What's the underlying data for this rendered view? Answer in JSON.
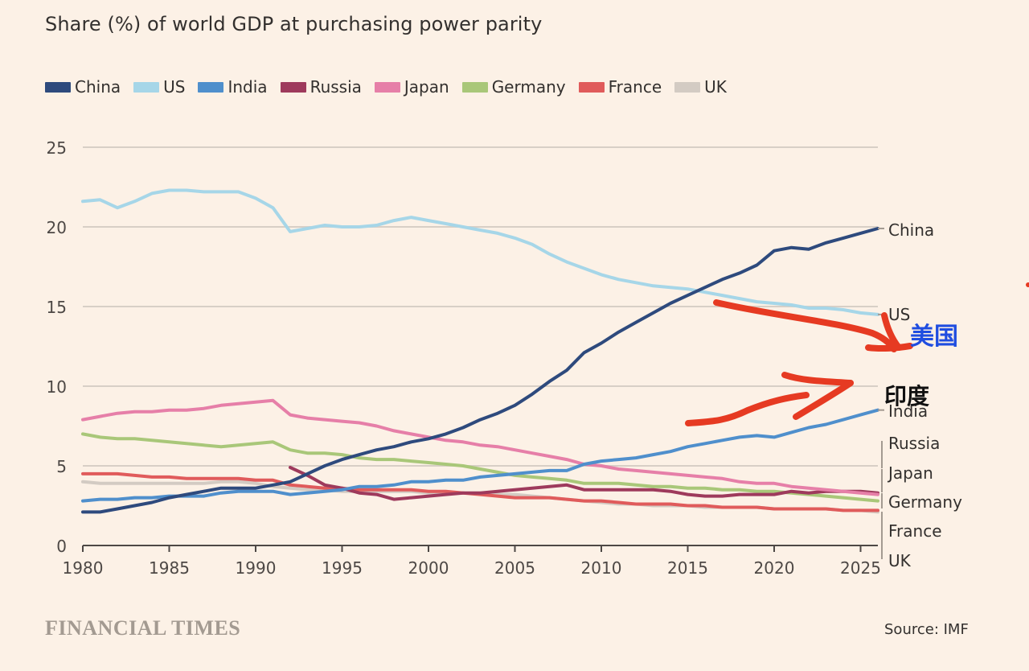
{
  "chart_data": {
    "type": "line",
    "title": "Share (%) of world GDP at purchasing power parity",
    "source": "Source: IMF",
    "brand": "FINANCIAL TIMES",
    "xlim": [
      1980,
      2026
    ],
    "ylim": [
      0,
      25
    ],
    "xticks": [
      "1980",
      "1985",
      "1990",
      "1995",
      "2000",
      "2005",
      "2010",
      "2015",
      "2020",
      "2025"
    ],
    "yticks": [
      "0",
      "5",
      "10",
      "15",
      "20",
      "25"
    ],
    "legend_position": "top-left",
    "series": [
      {
        "name": "China",
        "color": "#2e4a7d",
        "label": "China",
        "x": [
          1980,
          1981,
          1982,
          1983,
          1984,
          1985,
          1986,
          1987,
          1988,
          1989,
          1990,
          1991,
          1992,
          1993,
          1994,
          1995,
          1996,
          1997,
          1998,
          1999,
          2000,
          2001,
          2002,
          2003,
          2004,
          2005,
          2006,
          2007,
          2008,
          2009,
          2010,
          2011,
          2012,
          2013,
          2014,
          2015,
          2016,
          2017,
          2018,
          2019,
          2020,
          2021,
          2022,
          2023,
          2024,
          2025,
          2026
        ],
        "y": [
          2.1,
          2.1,
          2.3,
          2.5,
          2.7,
          3.0,
          3.2,
          3.4,
          3.6,
          3.6,
          3.6,
          3.8,
          4.0,
          4.5,
          5.0,
          5.4,
          5.7,
          6.0,
          6.2,
          6.5,
          6.7,
          7.0,
          7.4,
          7.9,
          8.3,
          8.8,
          9.5,
          10.3,
          11.0,
          12.1,
          12.7,
          13.4,
          14.0,
          14.6,
          15.2,
          15.7,
          16.2,
          16.7,
          17.1,
          17.6,
          18.5,
          18.7,
          18.6,
          19.0,
          19.3,
          19.6,
          19.9
        ]
      },
      {
        "name": "US",
        "color": "#a6d6e8",
        "label": "US",
        "x": [
          1980,
          1981,
          1982,
          1983,
          1984,
          1985,
          1986,
          1987,
          1988,
          1989,
          1990,
          1991,
          1992,
          1993,
          1994,
          1995,
          1996,
          1997,
          1998,
          1999,
          2000,
          2001,
          2002,
          2003,
          2004,
          2005,
          2006,
          2007,
          2008,
          2009,
          2010,
          2011,
          2012,
          2013,
          2014,
          2015,
          2016,
          2017,
          2018,
          2019,
          2020,
          2021,
          2022,
          2023,
          2024,
          2025,
          2026
        ],
        "y": [
          21.6,
          21.7,
          21.2,
          21.6,
          22.1,
          22.3,
          22.3,
          22.2,
          22.2,
          22.2,
          21.8,
          21.2,
          19.7,
          19.9,
          20.1,
          20.0,
          20.0,
          20.1,
          20.4,
          20.6,
          20.4,
          20.2,
          20.0,
          19.8,
          19.6,
          19.3,
          18.9,
          18.3,
          17.8,
          17.4,
          17.0,
          16.7,
          16.5,
          16.3,
          16.2,
          16.1,
          15.9,
          15.7,
          15.5,
          15.3,
          15.2,
          15.1,
          14.9,
          14.9,
          14.8,
          14.6,
          14.5
        ]
      },
      {
        "name": "India",
        "color": "#4f8fcc",
        "label": "India",
        "x": [
          1980,
          1981,
          1982,
          1983,
          1984,
          1985,
          1986,
          1987,
          1988,
          1989,
          1990,
          1991,
          1992,
          1993,
          1994,
          1995,
          1996,
          1997,
          1998,
          1999,
          2000,
          2001,
          2002,
          2003,
          2004,
          2005,
          2006,
          2007,
          2008,
          2009,
          2010,
          2011,
          2012,
          2013,
          2014,
          2015,
          2016,
          2017,
          2018,
          2019,
          2020,
          2021,
          2022,
          2023,
          2024,
          2025,
          2026
        ],
        "y": [
          2.8,
          2.9,
          2.9,
          3.0,
          3.0,
          3.1,
          3.1,
          3.1,
          3.3,
          3.4,
          3.4,
          3.4,
          3.2,
          3.3,
          3.4,
          3.5,
          3.7,
          3.7,
          3.8,
          4.0,
          4.0,
          4.1,
          4.1,
          4.3,
          4.4,
          4.5,
          4.6,
          4.7,
          4.7,
          5.1,
          5.3,
          5.4,
          5.5,
          5.7,
          5.9,
          6.2,
          6.4,
          6.6,
          6.8,
          6.9,
          6.8,
          7.1,
          7.4,
          7.6,
          7.9,
          8.2,
          8.5
        ]
      },
      {
        "name": "Russia",
        "color": "#9e3a5c",
        "label": "Russia",
        "x": [
          1992,
          1993,
          1994,
          1995,
          1996,
          1997,
          1998,
          1999,
          2000,
          2001,
          2002,
          2003,
          2004,
          2005,
          2006,
          2007,
          2008,
          2009,
          2010,
          2011,
          2012,
          2013,
          2014,
          2015,
          2016,
          2017,
          2018,
          2019,
          2020,
          2021,
          2022,
          2023,
          2024,
          2025,
          2026
        ],
        "y": [
          4.9,
          4.4,
          3.8,
          3.6,
          3.3,
          3.2,
          2.9,
          3.0,
          3.1,
          3.2,
          3.3,
          3.3,
          3.4,
          3.5,
          3.6,
          3.7,
          3.8,
          3.5,
          3.5,
          3.5,
          3.5,
          3.5,
          3.4,
          3.2,
          3.1,
          3.1,
          3.2,
          3.2,
          3.2,
          3.4,
          3.3,
          3.4,
          3.4,
          3.4,
          3.3
        ]
      },
      {
        "name": "Japan",
        "color": "#e67fa8",
        "label": "Japan",
        "x": [
          1980,
          1981,
          1982,
          1983,
          1984,
          1985,
          1986,
          1987,
          1988,
          1989,
          1990,
          1991,
          1992,
          1993,
          1994,
          1995,
          1996,
          1997,
          1998,
          1999,
          2000,
          2001,
          2002,
          2003,
          2004,
          2005,
          2006,
          2007,
          2008,
          2009,
          2010,
          2011,
          2012,
          2013,
          2014,
          2015,
          2016,
          2017,
          2018,
          2019,
          2020,
          2021,
          2022,
          2023,
          2024,
          2025,
          2026
        ],
        "y": [
          7.9,
          8.1,
          8.3,
          8.4,
          8.4,
          8.5,
          8.5,
          8.6,
          8.8,
          8.9,
          9.0,
          9.1,
          8.2,
          8.0,
          7.9,
          7.8,
          7.7,
          7.5,
          7.2,
          7.0,
          6.8,
          6.6,
          6.5,
          6.3,
          6.2,
          6.0,
          5.8,
          5.6,
          5.4,
          5.1,
          5.0,
          4.8,
          4.7,
          4.6,
          4.5,
          4.4,
          4.3,
          4.2,
          4.0,
          3.9,
          3.9,
          3.7,
          3.6,
          3.5,
          3.4,
          3.3,
          3.2
        ]
      },
      {
        "name": "Germany",
        "color": "#a9c779",
        "label": "Germany",
        "x": [
          1980,
          1981,
          1982,
          1983,
          1984,
          1985,
          1986,
          1987,
          1988,
          1989,
          1990,
          1991,
          1992,
          1993,
          1994,
          1995,
          1996,
          1997,
          1998,
          1999,
          2000,
          2001,
          2002,
          2003,
          2004,
          2005,
          2006,
          2007,
          2008,
          2009,
          2010,
          2011,
          2012,
          2013,
          2014,
          2015,
          2016,
          2017,
          2018,
          2019,
          2020,
          2021,
          2022,
          2023,
          2024,
          2025,
          2026
        ],
        "y": [
          7.0,
          6.8,
          6.7,
          6.7,
          6.6,
          6.5,
          6.4,
          6.3,
          6.2,
          6.3,
          6.4,
          6.5,
          6.0,
          5.8,
          5.8,
          5.7,
          5.5,
          5.4,
          5.4,
          5.3,
          5.2,
          5.1,
          5.0,
          4.8,
          4.6,
          4.4,
          4.3,
          4.2,
          4.1,
          3.9,
          3.9,
          3.9,
          3.8,
          3.7,
          3.7,
          3.6,
          3.6,
          3.5,
          3.5,
          3.4,
          3.4,
          3.3,
          3.2,
          3.1,
          3.0,
          2.9,
          2.8
        ]
      },
      {
        "name": "France",
        "color": "#e05b5b",
        "label": "France",
        "x": [
          1980,
          1981,
          1982,
          1983,
          1984,
          1985,
          1986,
          1987,
          1988,
          1989,
          1990,
          1991,
          1992,
          1993,
          1994,
          1995,
          1996,
          1997,
          1998,
          1999,
          2000,
          2001,
          2002,
          2003,
          2004,
          2005,
          2006,
          2007,
          2008,
          2009,
          2010,
          2011,
          2012,
          2013,
          2014,
          2015,
          2016,
          2017,
          2018,
          2019,
          2020,
          2021,
          2022,
          2023,
          2024,
          2025,
          2026
        ],
        "y": [
          4.5,
          4.5,
          4.5,
          4.4,
          4.3,
          4.3,
          4.2,
          4.2,
          4.2,
          4.2,
          4.1,
          4.1,
          3.8,
          3.7,
          3.6,
          3.6,
          3.5,
          3.5,
          3.5,
          3.5,
          3.4,
          3.4,
          3.3,
          3.2,
          3.1,
          3.0,
          3.0,
          3.0,
          2.9,
          2.8,
          2.8,
          2.7,
          2.6,
          2.6,
          2.6,
          2.5,
          2.5,
          2.4,
          2.4,
          2.4,
          2.3,
          2.3,
          2.3,
          2.3,
          2.2,
          2.2,
          2.2
        ]
      },
      {
        "name": "UK",
        "color": "#d3cbc3",
        "label": "UK",
        "x": [
          1980,
          1981,
          1982,
          1983,
          1984,
          1985,
          1986,
          1987,
          1988,
          1989,
          1990,
          1991,
          1992,
          1993,
          1994,
          1995,
          1996,
          1997,
          1998,
          1999,
          2000,
          2001,
          2002,
          2003,
          2004,
          2005,
          2006,
          2007,
          2008,
          2009,
          2010,
          2011,
          2012,
          2013,
          2014,
          2015,
          2016,
          2017,
          2018,
          2019,
          2020,
          2021,
          2022,
          2023,
          2024,
          2025,
          2026
        ],
        "y": [
          4.0,
          3.9,
          3.9,
          3.9,
          3.9,
          3.9,
          3.9,
          3.9,
          4.0,
          4.0,
          3.9,
          3.7,
          3.6,
          3.5,
          3.5,
          3.4,
          3.4,
          3.4,
          3.4,
          3.4,
          3.3,
          3.3,
          3.3,
          3.3,
          3.2,
          3.2,
          3.1,
          3.0,
          2.9,
          2.8,
          2.7,
          2.6,
          2.6,
          2.5,
          2.5,
          2.5,
          2.4,
          2.4,
          2.4,
          2.4,
          2.3,
          2.3,
          2.3,
          2.3,
          2.2,
          2.2,
          2.1
        ]
      }
    ],
    "annotations": [
      {
        "text": "美国",
        "color": "#1f4de0",
        "label_for": "US"
      },
      {
        "text": "印度",
        "color": "#111111",
        "label_for": "India"
      }
    ]
  }
}
